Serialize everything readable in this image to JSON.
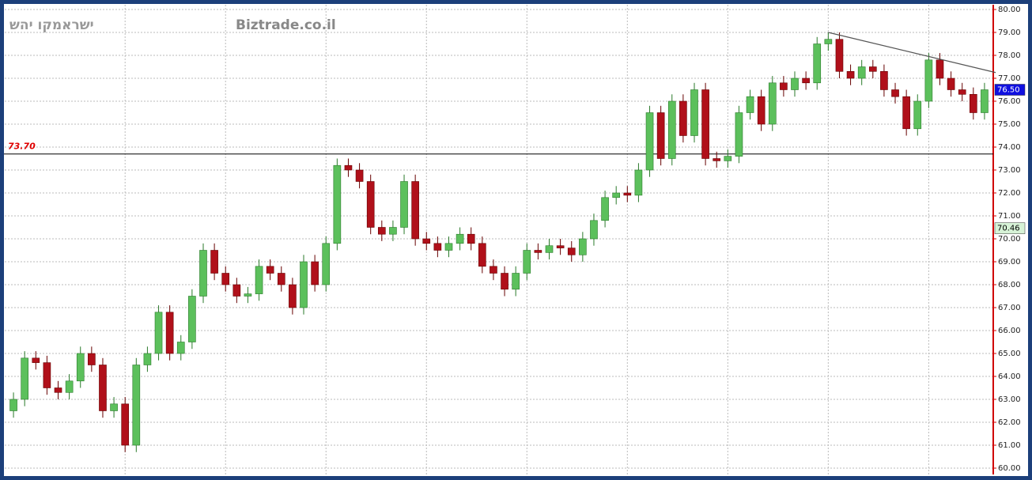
{
  "chart_data": {
    "type": "candlestick",
    "title": "ישראמקו יהש",
    "subtitle": "Biztrade.co.il",
    "grid": true,
    "up_color": "#5cc05c",
    "down_color": "#b0101a",
    "ylim": [
      60,
      80
    ],
    "yticks": [
      {
        "value": 60,
        "label": "60.00"
      },
      {
        "value": 61,
        "label": "61.00"
      },
      {
        "value": 62,
        "label": "62.00"
      },
      {
        "value": 63,
        "label": "63.00"
      },
      {
        "value": 64,
        "label": "64.00"
      },
      {
        "value": 65,
        "label": "65.00"
      },
      {
        "value": 66,
        "label": "66.00"
      },
      {
        "value": 67,
        "label": "67.00"
      },
      {
        "value": 68,
        "label": "68.00"
      },
      {
        "value": 69,
        "label": "69.00"
      },
      {
        "value": 70,
        "label": "70.00"
      },
      {
        "value": 71,
        "label": "71.00"
      },
      {
        "value": 72,
        "label": "72.00"
      },
      {
        "value": 73,
        "label": "73.00"
      },
      {
        "value": 74,
        "label": "74.00"
      },
      {
        "value": 75,
        "label": "75.00"
      },
      {
        "value": 76,
        "label": "76.00"
      },
      {
        "value": 77,
        "label": "77.00"
      },
      {
        "value": 78,
        "label": "78.00"
      },
      {
        "value": 79,
        "label": "79.00"
      },
      {
        "value": 80,
        "label": "80.00"
      }
    ],
    "open": [
      62.5,
      63.0,
      64.8,
      64.6,
      63.5,
      63.3,
      63.8,
      65.0,
      64.5,
      62.5,
      62.8,
      61.0,
      64.5,
      65.0,
      66.8,
      65.0,
      65.5,
      67.5,
      69.5,
      68.5,
      68.0,
      67.5,
      67.6,
      68.8,
      68.5,
      68.0,
      67.0,
      69.0,
      68.0,
      69.8,
      73.2,
      73.0,
      72.5,
      70.5,
      70.2,
      70.5,
      72.5,
      70.0,
      69.8,
      69.5,
      69.8,
      70.2,
      69.8,
      68.8,
      68.5,
      67.8,
      68.5,
      69.5,
      69.4,
      69.7,
      69.6,
      69.3,
      70.0,
      70.8,
      71.8,
      72.0,
      71.9,
      73.0,
      75.5,
      73.5,
      76.0,
      74.5,
      76.5,
      73.5,
      73.4,
      73.6,
      75.5,
      76.2,
      75.0,
      76.8,
      76.5,
      77.0,
      76.8,
      78.5,
      78.7,
      77.3,
      77.0,
      77.5,
      77.3,
      76.5,
      76.2,
      74.8,
      76.0,
      77.8,
      77.0,
      76.5,
      76.3,
      75.5
    ],
    "high": [
      63.3,
      65.1,
      65.1,
      64.9,
      63.8,
      64.1,
      65.3,
      65.3,
      64.8,
      63.1,
      63.1,
      64.8,
      65.3,
      67.1,
      67.1,
      65.8,
      67.8,
      69.8,
      69.8,
      68.8,
      68.3,
      67.9,
      69.1,
      69.1,
      68.8,
      68.3,
      69.3,
      69.3,
      70.1,
      73.5,
      73.5,
      73.3,
      72.8,
      70.8,
      70.8,
      72.8,
      72.8,
      70.3,
      70.1,
      70.1,
      70.5,
      70.5,
      70.1,
      69.1,
      68.8,
      68.8,
      69.8,
      69.8,
      70.0,
      70.0,
      69.9,
      70.3,
      71.1,
      72.1,
      72.3,
      72.3,
      73.3,
      75.8,
      75.8,
      76.3,
      76.3,
      76.8,
      76.8,
      73.8,
      73.9,
      75.8,
      76.5,
      76.5,
      77.1,
      77.1,
      77.3,
      77.3,
      78.8,
      79.0,
      79.0,
      77.6,
      77.8,
      77.8,
      77.6,
      76.8,
      76.5,
      76.3,
      78.1,
      78.1,
      77.3,
      76.8,
      76.6,
      76.8
    ],
    "low": [
      62.2,
      62.7,
      64.3,
      63.2,
      63.0,
      63.0,
      63.5,
      64.2,
      62.2,
      62.2,
      60.7,
      60.7,
      64.2,
      64.7,
      64.7,
      64.7,
      65.2,
      67.2,
      68.2,
      67.7,
      67.2,
      67.2,
      67.3,
      68.2,
      67.7,
      66.7,
      66.7,
      67.7,
      67.7,
      69.5,
      72.7,
      72.2,
      70.2,
      69.9,
      69.9,
      70.2,
      69.7,
      69.5,
      69.2,
      69.2,
      69.5,
      69.5,
      68.5,
      68.2,
      67.5,
      67.5,
      68.2,
      69.1,
      69.1,
      69.3,
      69.0,
      69.0,
      69.7,
      70.5,
      71.5,
      71.6,
      71.6,
      72.7,
      73.2,
      73.2,
      74.2,
      74.2,
      73.2,
      73.1,
      73.1,
      73.3,
      75.2,
      74.7,
      74.7,
      76.2,
      76.2,
      76.5,
      76.5,
      78.2,
      77.0,
      76.7,
      76.7,
      77.0,
      76.2,
      75.9,
      74.5,
      74.5,
      75.7,
      76.7,
      76.2,
      76.0,
      75.2,
      75.2
    ],
    "close": [
      63.0,
      64.8,
      64.6,
      63.5,
      63.3,
      63.8,
      65.0,
      64.5,
      62.5,
      62.8,
      61.0,
      64.5,
      65.0,
      66.8,
      65.0,
      65.5,
      67.5,
      69.5,
      68.5,
      68.0,
      67.5,
      67.6,
      68.8,
      68.5,
      68.0,
      67.0,
      69.0,
      68.0,
      69.8,
      73.2,
      73.0,
      72.5,
      70.5,
      70.2,
      70.5,
      72.5,
      70.0,
      69.8,
      69.5,
      69.8,
      70.2,
      69.8,
      68.8,
      68.5,
      67.8,
      68.5,
      69.5,
      69.4,
      69.7,
      69.6,
      69.3,
      70.0,
      70.8,
      71.8,
      72.0,
      71.9,
      73.0,
      75.5,
      73.5,
      76.0,
      74.5,
      76.5,
      73.5,
      73.4,
      73.6,
      75.5,
      76.2,
      75.0,
      76.8,
      76.5,
      77.0,
      76.8,
      78.5,
      78.7,
      77.3,
      77.0,
      77.5,
      77.3,
      76.5,
      76.2,
      74.8,
      76.0,
      77.8,
      77.0,
      76.5,
      76.3,
      75.5,
      76.5
    ],
    "hline": {
      "value": 73.7,
      "label": "73.70",
      "color": "#e00000"
    },
    "trendline": {
      "x": [
        73,
        88
      ],
      "y": [
        79.0,
        77.25
      ],
      "color": "#555555"
    },
    "price_tags": [
      {
        "value": 76.5,
        "label": "76.50",
        "color": "#1010e0",
        "text_color": "#ffffff"
      },
      {
        "value": 70.46,
        "label": "70.46",
        "color": "#d6f2d6",
        "text_color": "#000000"
      }
    ]
  }
}
